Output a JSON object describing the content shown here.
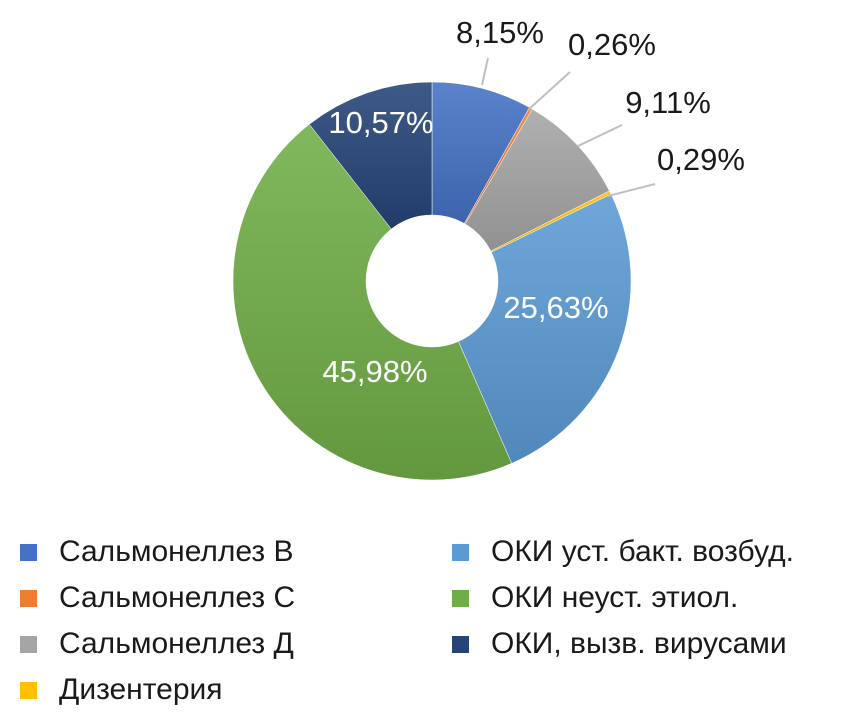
{
  "chart_data": {
    "type": "pie",
    "categories": [
      "Сальмонеллез В",
      "Сальмонеллез С",
      "Сальмонеллез Д",
      "Дизентерия",
      "ОКИ уст. бакт. возбуд.",
      "ОКИ неуст. этиол.",
      "ОКИ, вызв. вирусами"
    ],
    "values": [
      8.15,
      0.26,
      9.11,
      0.29,
      25.63,
      45.98,
      10.57
    ],
    "data_labels": [
      "8,15%",
      "0,26%",
      "9,11%",
      "0,29%",
      "25,63%",
      "45,98%",
      "10,57%"
    ],
    "colors": [
      "#4472C4",
      "#ED7D31",
      "#A5A5A5",
      "#FFC000",
      "#5B9BD5",
      "#70AD47",
      "#264478"
    ],
    "donut": true,
    "legend_position": "bottom"
  },
  "legend": {
    "items": [
      {
        "label": "Сальмонеллез В",
        "color": "#4472C4"
      },
      {
        "label": "ОКИ уст. бакт. возбуд.",
        "color": "#5B9BD5"
      },
      {
        "label": "Сальмонеллез С",
        "color": "#ED7D31"
      },
      {
        "label": "ОКИ неуст. этиол.",
        "color": "#70AD47"
      },
      {
        "label": "Сальмонеллез Д",
        "color": "#A5A5A5"
      },
      {
        "label": "ОКИ, вызв. вирусами",
        "color": "#264478"
      },
      {
        "label": "Дизентерия",
        "color": "#FFC000"
      }
    ]
  }
}
